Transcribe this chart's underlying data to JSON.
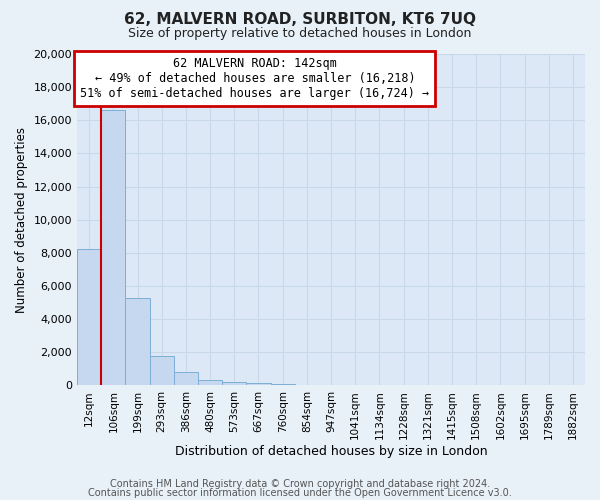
{
  "title": "62, MALVERN ROAD, SURBITON, KT6 7UQ",
  "subtitle": "Size of property relative to detached houses in London",
  "xlabel": "Distribution of detached houses by size in London",
  "ylabel": "Number of detached properties",
  "bar_labels": [
    "12sqm",
    "106sqm",
    "199sqm",
    "293sqm",
    "386sqm",
    "480sqm",
    "573sqm",
    "667sqm",
    "760sqm",
    "854sqm",
    "947sqm",
    "1041sqm",
    "1134sqm",
    "1228sqm",
    "1321sqm",
    "1415sqm",
    "1508sqm",
    "1602sqm",
    "1695sqm",
    "1789sqm",
    "1882sqm"
  ],
  "bar_values": [
    8200,
    16600,
    5300,
    1750,
    800,
    300,
    200,
    130,
    100,
    0,
    0,
    0,
    0,
    0,
    0,
    0,
    0,
    0,
    0,
    0,
    0
  ],
  "bar_color": "#c5d8f0",
  "bar_edge_color": "#7bafd4",
  "vline_x_index": 1,
  "vline_color": "#cc0000",
  "ylim": [
    0,
    20000
  ],
  "yticks": [
    0,
    2000,
    4000,
    6000,
    8000,
    10000,
    12000,
    14000,
    16000,
    18000,
    20000
  ],
  "annotation_box_text": "62 MALVERN ROAD: 142sqm\n← 49% of detached houses are smaller (16,218)\n51% of semi-detached houses are larger (16,724) →",
  "annotation_box_color": "#cc0000",
  "footer_line1": "Contains HM Land Registry data © Crown copyright and database right 2024.",
  "footer_line2": "Contains public sector information licensed under the Open Government Licence v3.0.",
  "bg_color": "#e8f0f8",
  "plot_bg_color": "#dce8f5",
  "grid_color": "#c8d8e8",
  "title_fontsize": 11,
  "subtitle_fontsize": 9,
  "annotation_fontsize": 8.5,
  "footer_fontsize": 7
}
